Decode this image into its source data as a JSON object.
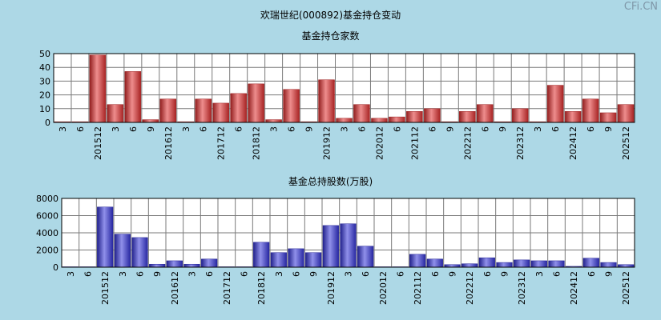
{
  "title": "欢瑞世纪(000892)基金持仓变动",
  "watermark": "CFi.CN",
  "x_labels": [
    "3",
    "6",
    "201512",
    "3",
    "6",
    "9",
    "201612",
    "3",
    "6",
    "201712",
    "6",
    "201812",
    "3",
    "6",
    "9",
    "201912",
    "3",
    "6",
    "202012",
    "6",
    "202112",
    "6",
    "9",
    "202212",
    "6",
    "9",
    "202312",
    "3",
    "6",
    "202412",
    "6",
    "9",
    "202512"
  ],
  "chart_data": [
    {
      "type": "bar",
      "title": "基金持仓家数",
      "color": "#e03030",
      "categories": [
        "3",
        "6",
        "201512",
        "3",
        "6",
        "9",
        "201612",
        "3",
        "6",
        "201712",
        "6",
        "201812",
        "3",
        "6",
        "9",
        "201912",
        "3",
        "6",
        "202012",
        "6",
        "202112",
        "6",
        "9",
        "202212",
        "6",
        "9",
        "202312",
        "3",
        "6",
        "202412",
        "6",
        "9",
        "202512"
      ],
      "values": [
        0.5,
        0.5,
        49,
        13,
        37,
        2,
        17,
        0.5,
        17,
        14,
        21,
        28,
        2,
        24,
        0.5,
        31,
        3,
        13,
        3,
        4,
        8,
        10,
        0.5,
        8,
        13,
        0.5,
        10,
        0.5,
        27,
        8,
        17,
        7,
        13
      ],
      "ylim": [
        0,
        50
      ],
      "yticks": [
        0,
        10,
        20,
        30,
        40,
        50
      ],
      "grid": true
    },
    {
      "type": "bar",
      "title": "基金总持股数(万股)",
      "color": "#3535d8",
      "categories": [
        "3",
        "6",
        "201512",
        "3",
        "6",
        "9",
        "201612",
        "3",
        "6",
        "201712",
        "6",
        "201812",
        "3",
        "6",
        "9",
        "201912",
        "3",
        "6",
        "202012",
        "6",
        "202112",
        "6",
        "9",
        "202212",
        "6",
        "9",
        "202312",
        "3",
        "6",
        "202412",
        "6",
        "9",
        "202512"
      ],
      "values": [
        50,
        50,
        7000,
        3850,
        3450,
        350,
        750,
        350,
        950,
        50,
        50,
        2900,
        1700,
        2150,
        1700,
        4850,
        5050,
        2450,
        50,
        50,
        1500,
        950,
        300,
        400,
        1100,
        550,
        850,
        750,
        750,
        100,
        1050,
        550,
        300
      ],
      "ylim": [
        0,
        8000
      ],
      "yticks": [
        0,
        2000,
        4000,
        6000,
        8000
      ],
      "grid": true
    }
  ]
}
